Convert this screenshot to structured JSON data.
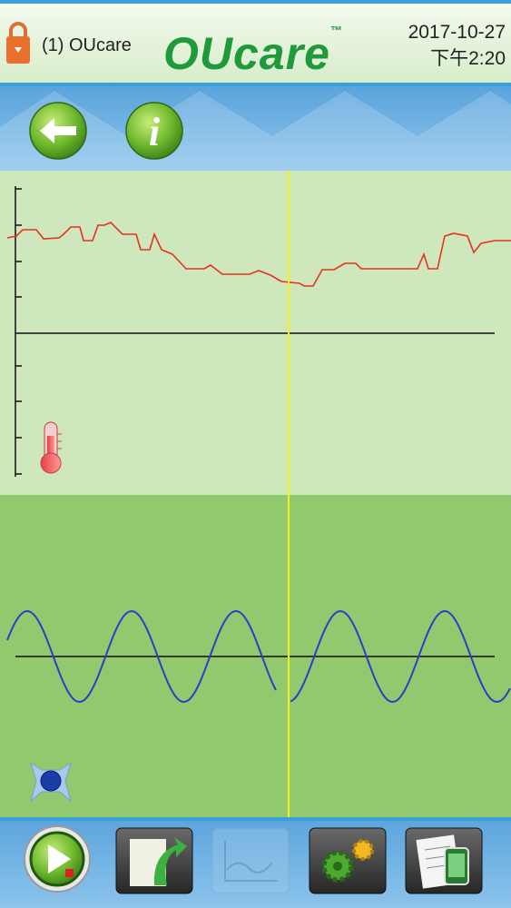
{
  "header": {
    "account": "(1) OUcare",
    "logo": "OUcare",
    "trademark": "™",
    "date": "2017-10-27",
    "time": "下午2:20"
  }
}
